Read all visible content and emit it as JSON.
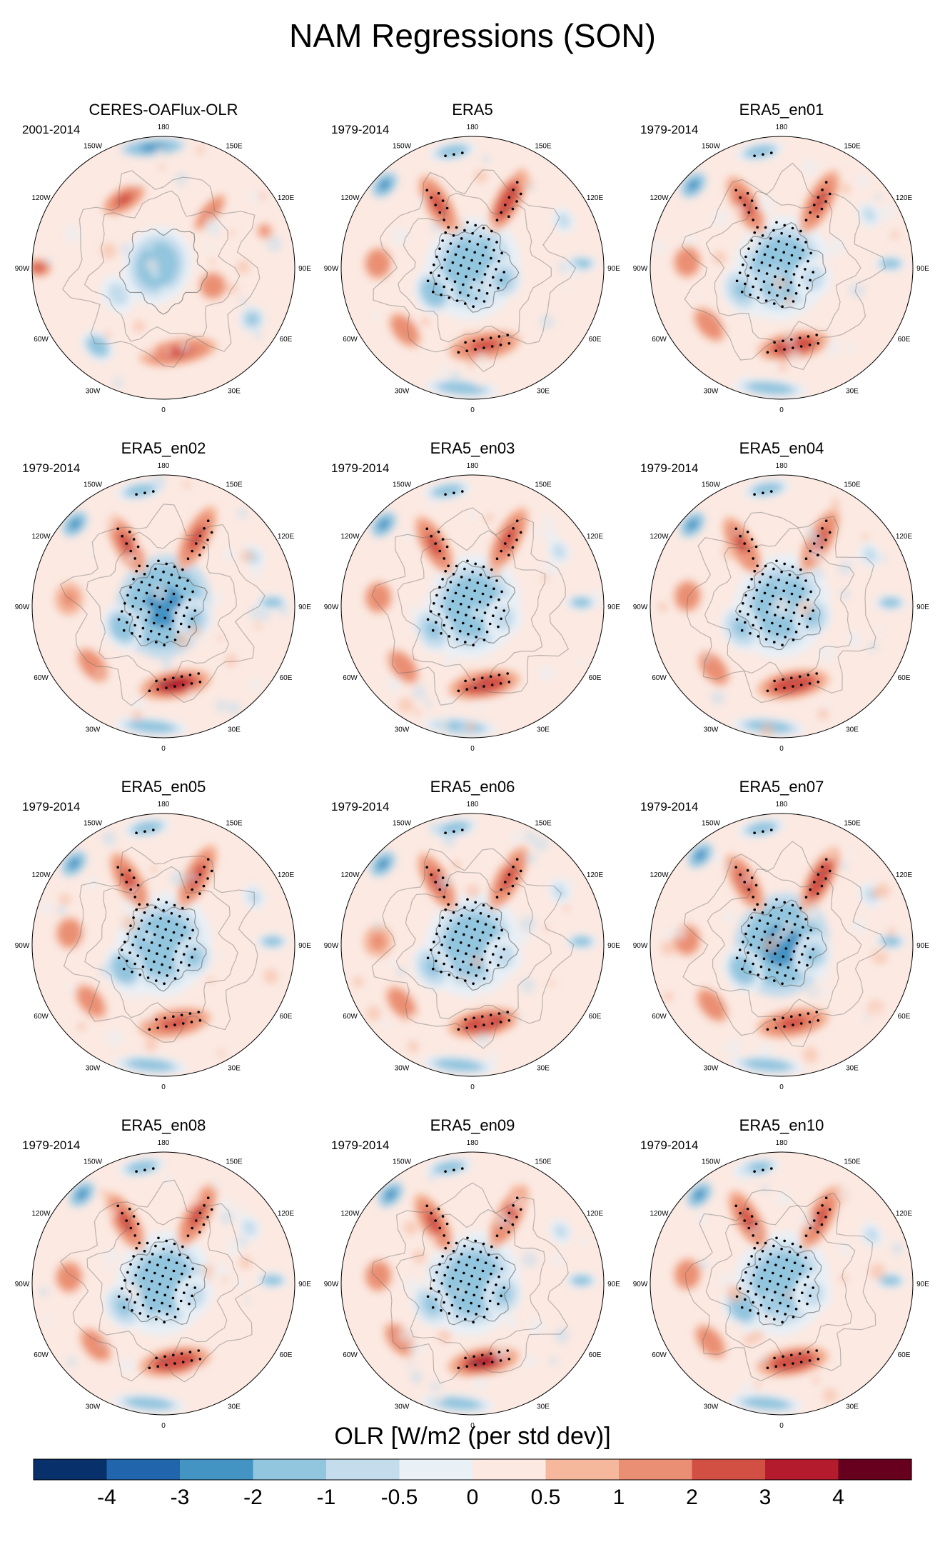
{
  "chart_data": {
    "type": "heatmap",
    "projection": "north-polar-stereographic",
    "title": "NAM Regressions (SON)",
    "colorbar": {
      "label": "OLR [W/m2 (per std dev)]",
      "tick_labels": [
        "-4",
        "-3",
        "-2",
        "-1",
        "-0.5",
        "0",
        "0.5",
        "1",
        "2",
        "3",
        "4"
      ],
      "levels": [
        -4,
        -3,
        -2,
        -1,
        -0.5,
        0,
        0.5,
        1,
        2,
        3,
        4
      ],
      "colors": [
        "#08306b",
        "#2166ac",
        "#4393c3",
        "#92c5de",
        "#c4dcec",
        "#e9f0f6",
        "#fbe9e2",
        "#f5b89c",
        "#ea8f73",
        "#d24f44",
        "#b41c2d",
        "#67001f"
      ]
    },
    "longitude_labels": [
      "180",
      "150E",
      "120E",
      "90E",
      "60E",
      "30E",
      "0",
      "30W",
      "60W",
      "90W",
      "120W",
      "150W"
    ],
    "panels": [
      {
        "title": "CERES-OAFlux-OLR",
        "period": "2001-2014"
      },
      {
        "title": "ERA5",
        "period": "1979-2014"
      },
      {
        "title": "ERA5_en01",
        "period": "1979-2014"
      },
      {
        "title": "ERA5_en02",
        "period": "1979-2014"
      },
      {
        "title": "ERA5_en03",
        "period": "1979-2014"
      },
      {
        "title": "ERA5_en04",
        "period": "1979-2014"
      },
      {
        "title": "ERA5_en05",
        "period": "1979-2014"
      },
      {
        "title": "ERA5_en06",
        "period": "1979-2014"
      },
      {
        "title": "ERA5_en07",
        "period": "1979-2014"
      },
      {
        "title": "ERA5_en08",
        "period": "1979-2014"
      },
      {
        "title": "ERA5_en09",
        "period": "1979-2014"
      },
      {
        "title": "ERA5_en10",
        "period": "1979-2014"
      }
    ]
  }
}
